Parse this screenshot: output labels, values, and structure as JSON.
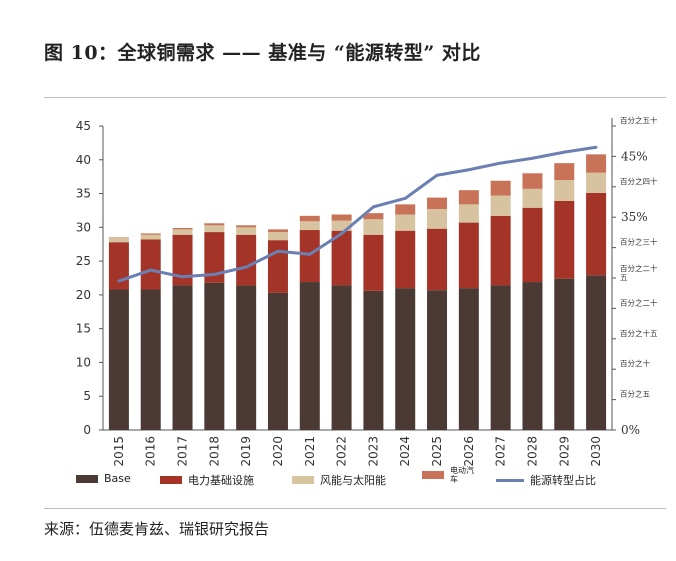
{
  "title": "图 10：全球铜需求 —— 基准与 “能源转型” 对比",
  "source": "来源：伍德麦肯兹、瑞银研究报告",
  "chart_data": {
    "type": "bar",
    "stacked": true,
    "categories": [
      "2015",
      "2016",
      "2017",
      "2018",
      "2019",
      "2020",
      "2021",
      "2022",
      "2023",
      "2024",
      "2025",
      "2026",
      "2027",
      "2028",
      "2029",
      "2030"
    ],
    "series": [
      {
        "name": "Base",
        "color": "#4a3a33",
        "values": [
          20.8,
          20.8,
          21.4,
          21.8,
          21.4,
          20.3,
          21.9,
          21.4,
          20.6,
          21.0,
          20.7,
          21.0,
          21.4,
          21.9,
          22.4,
          22.9
        ]
      },
      {
        "name": "电力基础设施",
        "color": "#a33427",
        "values": [
          7.0,
          7.4,
          7.5,
          7.5,
          7.5,
          7.8,
          7.7,
          8.1,
          8.3,
          8.5,
          9.1,
          9.7,
          10.3,
          11.0,
          11.5,
          12.2
        ]
      },
      {
        "name": "风能与太阳能",
        "color": "#d7c3a0",
        "values": [
          0.6,
          0.7,
          0.8,
          1.0,
          1.1,
          1.2,
          1.3,
          1.5,
          2.3,
          2.4,
          2.9,
          2.7,
          3.0,
          2.8,
          3.1,
          3.0
        ]
      },
      {
        "name": "电动汽车",
        "color": "#c87357",
        "values": [
          0.1,
          0.2,
          0.2,
          0.3,
          0.3,
          0.4,
          0.8,
          0.9,
          0.9,
          1.5,
          1.7,
          2.1,
          2.2,
          2.3,
          2.5,
          2.7
        ]
      }
    ],
    "line": {
      "name": "能源转型占比",
      "color": "#6b7fb3",
      "values": [
        24.5,
        26.3,
        25.2,
        25.6,
        26.8,
        29.4,
        28.9,
        32.3,
        36.7,
        38.1,
        41.9,
        42.8,
        43.9,
        44.7,
        45.7,
        46.5
      ]
    },
    "y_left": {
      "min": 0,
      "max": 45,
      "ticks": [
        "0",
        "5",
        "10",
        "15",
        "20",
        "25",
        "30",
        "35",
        "40",
        "45"
      ]
    },
    "y_right": {
      "min": 0,
      "max": 50,
      "ticks": [
        {
          "value": 0,
          "label": "0%"
        },
        {
          "value": 5,
          "label": "百分之五"
        },
        {
          "value": 10,
          "label": "百分之十"
        },
        {
          "value": 15,
          "label": "百分之十五"
        },
        {
          "value": 20,
          "label": "百分之二十"
        },
        {
          "value": 25,
          "label": "百分之二十五"
        },
        {
          "value": 30,
          "label": "百分之三十"
        },
        {
          "value": 35,
          "label": "35%"
        },
        {
          "value": 40,
          "label": "百分之四十"
        },
        {
          "value": 45,
          "label": "45%"
        },
        {
          "value": 50,
          "label": "百分之五十"
        }
      ]
    }
  },
  "legend": {
    "base": "Base",
    "grid": "电力基础设施",
    "wind_solar": "风能与太阳能",
    "ev": "电动汽车",
    "share": "能源转型占比"
  }
}
